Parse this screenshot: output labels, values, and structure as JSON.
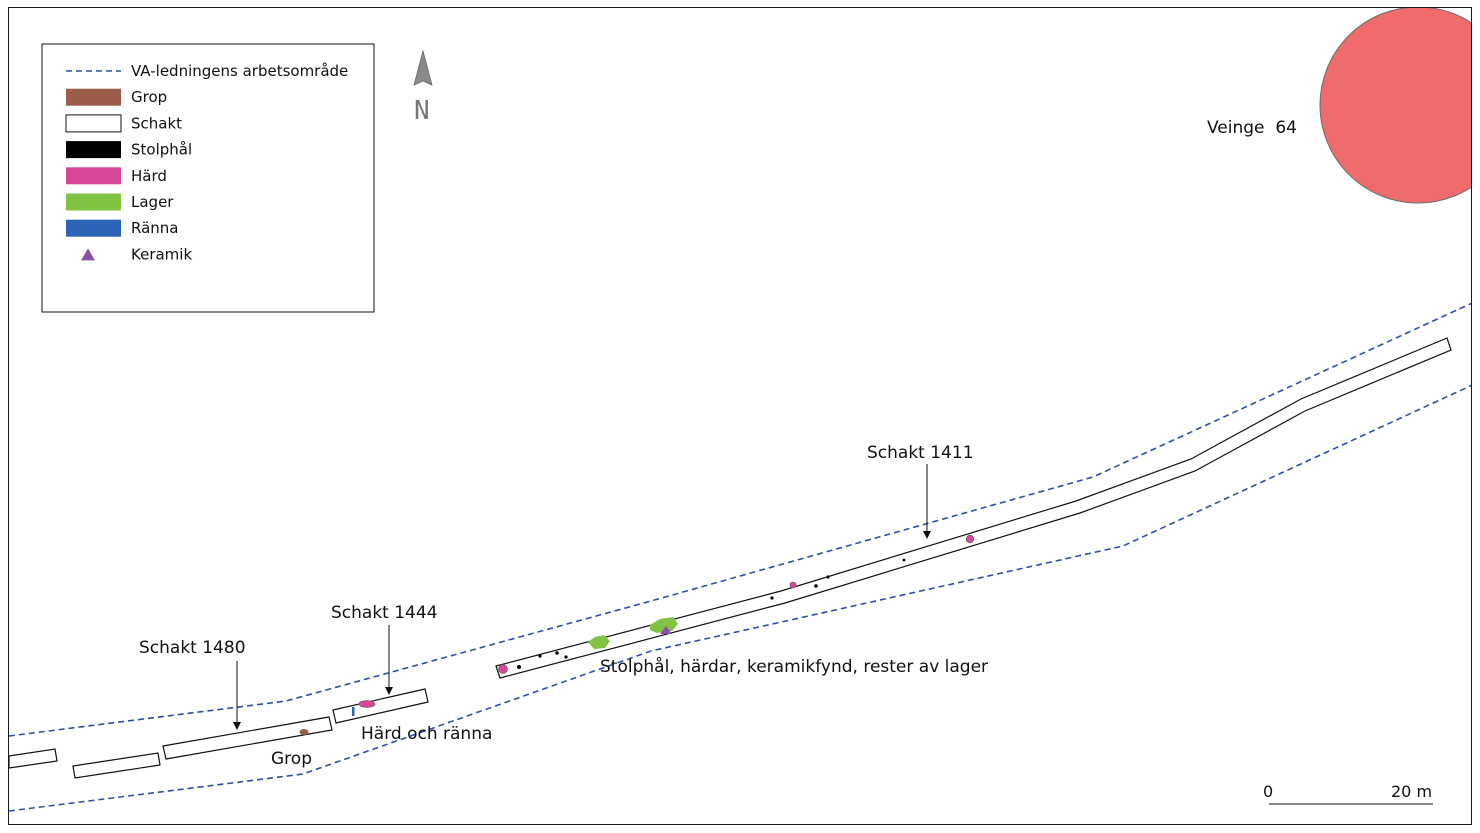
{
  "legend": {
    "items": [
      {
        "key": "work_area",
        "label": "VA-ledningens arbetsområde",
        "kind": "dashed",
        "color": "#2f4fa0"
      },
      {
        "key": "grop",
        "label": "Grop",
        "kind": "swatch",
        "color": "#9b5c4a"
      },
      {
        "key": "schakt",
        "label": "Schakt",
        "kind": "swatch",
        "color": "#ffffff"
      },
      {
        "key": "stolphal",
        "label": "Stolphål",
        "kind": "swatch",
        "color": "#000000"
      },
      {
        "key": "hard",
        "label": "Härd",
        "kind": "swatch",
        "color": "#d9479c"
      },
      {
        "key": "lager",
        "label": "Lager",
        "kind": "swatch",
        "color": "#80c342"
      },
      {
        "key": "ranna",
        "label": "Ränna",
        "kind": "swatch",
        "color": "#2b63b6"
      },
      {
        "key": "keramik",
        "label": "Keramik",
        "kind": "triangle",
        "color": "#8b4fa8"
      }
    ]
  },
  "north_arrow": {
    "label": "N"
  },
  "site": {
    "label": "Veinge  64",
    "color": "#f06b6b"
  },
  "labels": {
    "schakt_1411": "Schakt 1411",
    "schakt_1444": "Schakt 1444",
    "schakt_1480": "Schakt 1480",
    "finds_1411": "Stolphål, härdar, keramikfynd, rester av lager",
    "finds_1444": "Härd och ränna",
    "finds_1480": "Grop"
  },
  "scale_bar": {
    "start": "0",
    "end": "20 m"
  }
}
